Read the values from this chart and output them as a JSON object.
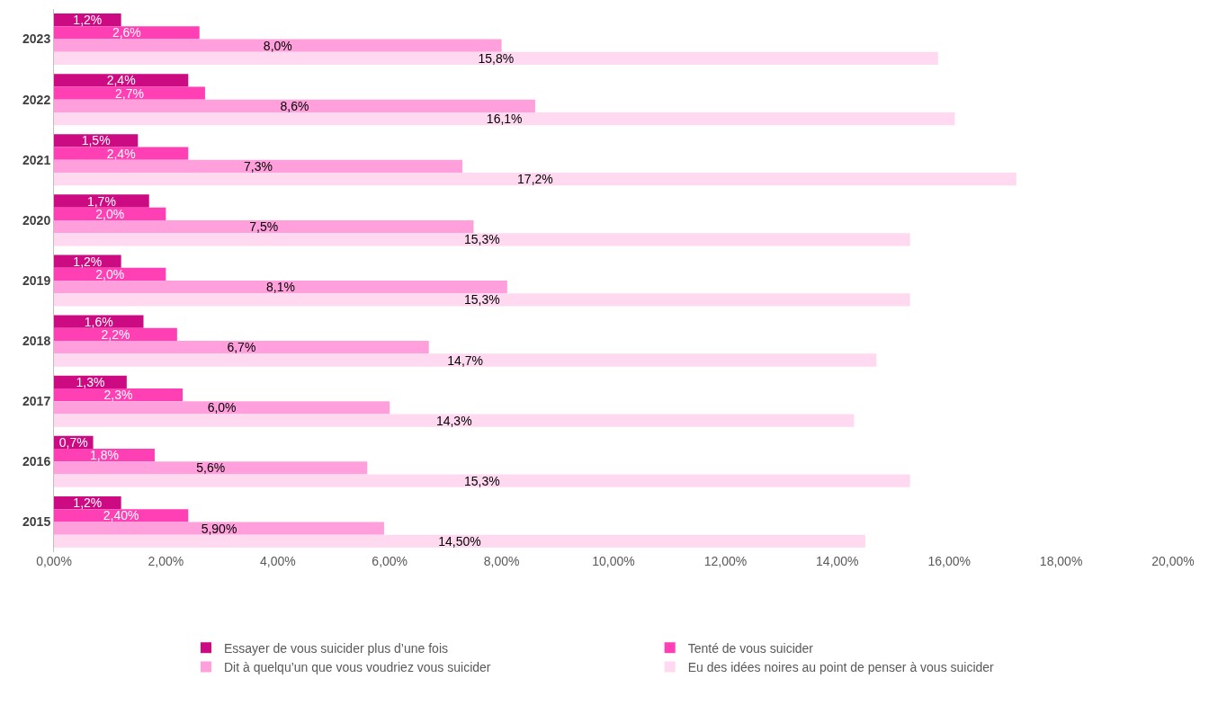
{
  "chart_data": {
    "type": "bar",
    "orientation": "horizontal",
    "categories": [
      "2023",
      "2022",
      "2021",
      "2020",
      "2019",
      "2018",
      "2017",
      "2016",
      "2015"
    ],
    "series": [
      {
        "name": "Essayer de vous suicider plus d’une fois",
        "color": "#cc0a82",
        "values": [
          1.2,
          2.4,
          1.5,
          1.7,
          1.2,
          1.6,
          1.3,
          0.7,
          1.2
        ],
        "value_labels": [
          "1,2%",
          "2,4%",
          "1,5%",
          "1,7%",
          "1,2%",
          "1,6%",
          "1,3%",
          "0,7%",
          "1,2%"
        ]
      },
      {
        "name": "Tenté de vous suicider",
        "color": "#ff40b4",
        "values": [
          2.6,
          2.7,
          2.4,
          2.0,
          2.0,
          2.2,
          2.3,
          1.8,
          2.4
        ],
        "value_labels": [
          "2,6%",
          "2,7%",
          "2,4%",
          "2,0%",
          "2,0%",
          "2,2%",
          "2,3%",
          "1,8%",
          "2,40%"
        ]
      },
      {
        "name": "Dit à quelqu’un que vous voudriez vous suicider",
        "color": "#ffa0dc",
        "values": [
          8.0,
          8.6,
          7.3,
          7.5,
          8.1,
          6.7,
          6.0,
          5.6,
          5.9
        ],
        "value_labels": [
          "8,0%",
          "8,6%",
          "7,3%",
          "7,5%",
          "8,1%",
          "6,7%",
          "6,0%",
          "5,6%",
          "5,90%"
        ]
      },
      {
        "name": "Eu des idées noires au point de penser à vous suicider",
        "color": "#ffd9f0",
        "values": [
          15.8,
          16.1,
          17.2,
          15.3,
          15.3,
          14.7,
          14.3,
          15.3,
          14.5
        ],
        "value_labels": [
          "15,8%",
          "16,1%",
          "17,2%",
          "15,3%",
          "15,3%",
          "14,7%",
          "14,3%",
          "15,3%",
          "14,50%"
        ]
      }
    ],
    "xlim": [
      0,
      20
    ],
    "xticks": [
      {
        "value": 0,
        "label": "0,00%"
      },
      {
        "value": 2,
        "label": "2,00%"
      },
      {
        "value": 4,
        "label": "4,00%"
      },
      {
        "value": 6,
        "label": "6,00%"
      },
      {
        "value": 8,
        "label": "8,00%"
      },
      {
        "value": 10,
        "label": "10,00%"
      },
      {
        "value": 12,
        "label": "12,00%"
      },
      {
        "value": 14,
        "label": "14,00%"
      },
      {
        "value": 16,
        "label": "16,00%"
      },
      {
        "value": 18,
        "label": "18,00%"
      },
      {
        "value": 20,
        "label": "20,00%"
      }
    ],
    "grid": false,
    "legend": "bottom"
  }
}
